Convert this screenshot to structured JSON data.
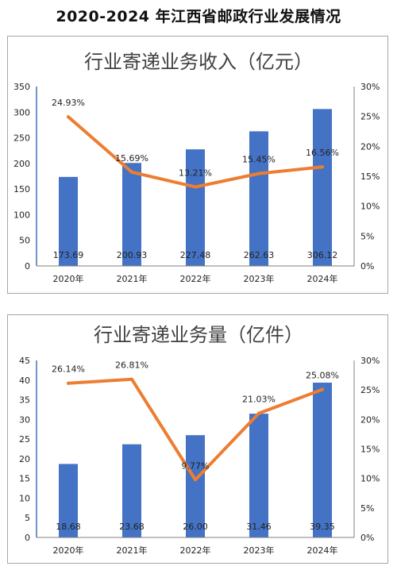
{
  "page_title": "2020-2024 年江西省邮政行业发展情况",
  "chart_data": [
    {
      "type": "bar",
      "title": "行业寄递业务收入（亿元）",
      "categories": [
        "2020年",
        "2021年",
        "2022年",
        "2023年",
        "2024年"
      ],
      "series": [
        {
          "values": [
            173.69,
            200.93,
            227.48,
            262.63,
            306.12
          ],
          "labels": [
            "173.69",
            "200.93",
            "227.48",
            "262.63",
            "306.12"
          ],
          "axis": "left",
          "mark": "bar",
          "color": "#4472c4"
        },
        {
          "values": [
            24.93,
            15.69,
            13.21,
            15.45,
            16.56
          ],
          "labels": [
            "24.93%",
            "15.69%",
            "13.21%",
            "15.45%",
            "16.56%"
          ],
          "axis": "right",
          "mark": "line",
          "color": "#ed7d31"
        }
      ],
      "ylim": [
        0,
        350
      ],
      "yticks": [
        "0",
        "50",
        "100",
        "150",
        "200",
        "250",
        "300",
        "350"
      ],
      "y2lim": [
        0,
        30
      ],
      "y2ticks": [
        "0%",
        "5%",
        "10%",
        "15%",
        "20%",
        "25%",
        "30%"
      ],
      "grid": false
    },
    {
      "type": "bar",
      "title": "行业寄递业务量（亿件）",
      "categories": [
        "2020年",
        "2021年",
        "2022年",
        "2023年",
        "2024年"
      ],
      "series": [
        {
          "values": [
            18.68,
            23.68,
            26.0,
            31.46,
            39.35
          ],
          "labels": [
            "18.68",
            "23.68",
            "26.00",
            "31.46",
            "39.35"
          ],
          "axis": "left",
          "mark": "bar",
          "color": "#4472c4"
        },
        {
          "values": [
            26.14,
            26.81,
            9.77,
            21.03,
            25.08
          ],
          "labels": [
            "26.14%",
            "26.81%",
            "9.77%",
            "21.03%",
            "25.08%"
          ],
          "axis": "right",
          "mark": "line",
          "color": "#ed7d31"
        }
      ],
      "ylim": [
        0,
        45
      ],
      "yticks": [
        "0",
        "5",
        "10",
        "15",
        "20",
        "25",
        "30",
        "35",
        "40",
        "45"
      ],
      "y2lim": [
        0,
        30
      ],
      "y2ticks": [
        "0%",
        "5%",
        "10%",
        "15%",
        "20%",
        "25%",
        "30%"
      ],
      "grid": false
    }
  ]
}
